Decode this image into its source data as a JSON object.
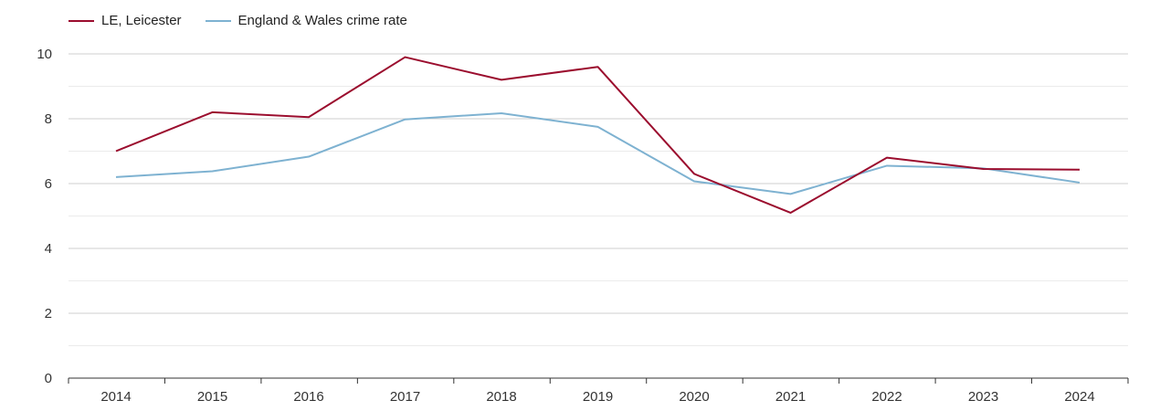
{
  "colors": {
    "series_primary": "#9b0d2e",
    "series_secondary": "#7eb2d1",
    "grid_major": "#cfcfcf",
    "grid_minor": "#ebebeb",
    "axis": "#333333"
  },
  "legend": {
    "items": [
      {
        "label": "LE, Leicester",
        "color": "#9b0d2e"
      },
      {
        "label": "England & Wales crime rate",
        "color": "#7eb2d1"
      }
    ]
  },
  "chart_data": {
    "type": "line",
    "title": "",
    "xlabel": "",
    "ylabel": "",
    "legend_position": "top-left",
    "grid": true,
    "ylim": [
      0,
      10
    ],
    "y_ticks": [
      "0",
      "2",
      "4",
      "6",
      "8",
      "10"
    ],
    "categories": [
      "2014",
      "2015",
      "2016",
      "2017",
      "2018",
      "2019",
      "2020",
      "2021",
      "2022",
      "2023",
      "2024"
    ],
    "series": [
      {
        "name": "LE, Leicester",
        "color": "#9b0d2e",
        "values": [
          7.0,
          8.2,
          8.05,
          9.9,
          9.2,
          9.6,
          6.3,
          5.1,
          6.8,
          6.45,
          6.43
        ]
      },
      {
        "name": "England & Wales crime rate",
        "color": "#7eb2d1",
        "values": [
          6.2,
          6.38,
          6.83,
          7.98,
          8.17,
          7.75,
          6.07,
          5.68,
          6.55,
          6.47,
          6.03
        ]
      }
    ]
  }
}
